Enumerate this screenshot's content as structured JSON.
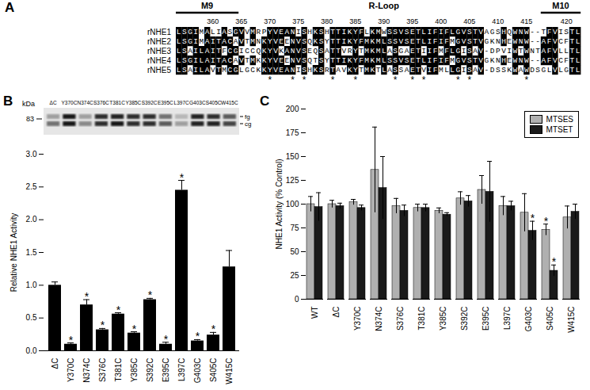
{
  "alignment": {
    "panel": "A",
    "start_residue": 354,
    "numbering": [
      360,
      365,
      370,
      375,
      380,
      385,
      390,
      395,
      400,
      405,
      410,
      415,
      420
    ],
    "segments": [
      {
        "label": "M9",
        "from": 354,
        "to": 364,
        "line": true
      },
      {
        "label": "R-Loop",
        "from": 365,
        "to": 415,
        "line": false
      },
      {
        "label": "M10",
        "from": 416,
        "to": 422,
        "line": true
      }
    ],
    "rows": [
      {
        "name": "rNHE1",
        "sequence": "LSGIMALIASGVVMRPYVEANISHKSHTTIKYFLKMWSSVSETLIFIFLGVSTVAGSHQWNW--TFVISTL"
      },
      {
        "name": "rNHE2",
        "sequence": "LSGIMAITACAVTMNKYVEENVSQKSYTTIKYFMKMLSSVSETLIFIFMGVSTVGKNHEWNW--AFVCFTL"
      },
      {
        "name": "rNHE3",
        "sequence": "LSAILAITFCGICCQKYVKANVSEQSATTVRYTMKMLASGAETIIFMFLGISAV-DPVIWTWNTAFVLLTL"
      },
      {
        "name": "rNHE4",
        "sequence": "LSGILAITACAVTMKKYVEENVSQTSYTTIKYFMKMLSSVSETLIFIFMGVSTVGKNHEWNW--AFVCFTL"
      },
      {
        "name": "rNHE5",
        "sequence": "LSAILAVTMCGLGCKKYVEANISHKSRTAVKYTMKTLASSAETVIFMLLGISAV-DSSKWAWDSGLVLGTL"
      }
    ],
    "marked_residues": [
      370,
      374,
      376,
      381,
      385,
      392,
      395,
      397,
      403,
      405,
      415
    ],
    "mark": "*"
  },
  "chart_data": [
    {
      "panel": "B",
      "type": "bar",
      "categories": [
        "ΔC",
        "Y370C",
        "N374C",
        "S376C",
        "T381C",
        "Y385C",
        "S392C",
        "E395C",
        "L397C",
        "G403C",
        "S405C",
        "W415C"
      ],
      "values": [
        1.0,
        0.1,
        0.7,
        0.32,
        0.56,
        0.27,
        0.78,
        0.1,
        2.45,
        0.15,
        0.24,
        1.28
      ],
      "errors": [
        0.05,
        0.02,
        0.08,
        0.02,
        0.02,
        0.02,
        0.02,
        0.03,
        0.15,
        0.02,
        0.04,
        0.25
      ],
      "marked": [
        false,
        true,
        true,
        true,
        true,
        true,
        true,
        true,
        true,
        true,
        true,
        false
      ],
      "annotation_text": "*",
      "color": "#000000",
      "ylabel": "Relative NHE1 Activity",
      "ylim": [
        0,
        3
      ],
      "yticks": [
        {
          "value": 0,
          "label": "0.0"
        },
        {
          "value": 0.5,
          "label": "0.5"
        },
        {
          "value": 1,
          "label": "1.0"
        },
        {
          "value": 1.5,
          "label": "1.5"
        },
        {
          "value": 2,
          "label": "2.0"
        },
        {
          "value": 2.5,
          "label": "2.5"
        },
        {
          "value": 3,
          "label": "3.0"
        }
      ],
      "blot": {
        "unit_label": "kDa",
        "marker": 83,
        "band_labels": [
          "fg",
          "cg"
        ],
        "intensity": {
          "fg": [
            0.3,
            0.9,
            0.3,
            0.8,
            0.85,
            0.8,
            0.8,
            0.5,
            0.2,
            0.85,
            0.8,
            0.6
          ],
          "cg": [
            0.5,
            0.9,
            0.4,
            0.8,
            0.9,
            0.8,
            0.8,
            0.6,
            0.3,
            0.85,
            0.85,
            0.7
          ]
        }
      }
    },
    {
      "panel": "C",
      "type": "bar",
      "categories": [
        "WT",
        "ΔC",
        "Y370C",
        "N374C",
        "S376C",
        "T381C",
        "Y385C",
        "S392C",
        "E395C",
        "L397C",
        "G403C",
        "S405C",
        "W415C"
      ],
      "series": [
        {
          "name": "MTSES",
          "color": "#b0b0b0",
          "values": [
            100,
            100,
            102,
            136,
            98,
            96,
            93,
            106,
            115,
            98,
            91,
            73,
            86
          ],
          "errors": [
            8,
            4,
            3,
            45,
            8,
            4,
            3,
            7,
            15,
            10,
            20,
            6,
            12
          ],
          "marked": [
            false,
            false,
            false,
            false,
            false,
            false,
            false,
            false,
            false,
            false,
            false,
            true,
            false
          ]
        },
        {
          "name": "MTSET",
          "color": "#1a1a1a",
          "values": [
            97,
            98,
            96,
            117,
            93,
            96,
            89,
            103,
            113,
            98,
            72,
            30,
            92
          ],
          "errors": [
            15,
            3,
            3,
            33,
            6,
            4,
            2,
            6,
            32,
            5,
            10,
            6,
            8
          ],
          "marked": [
            false,
            false,
            false,
            false,
            false,
            false,
            false,
            false,
            false,
            false,
            true,
            true,
            false
          ]
        }
      ],
      "annotation_text": "*",
      "ylabel": "NHE1 Activity (% Control)",
      "ylim": [
        0,
        200
      ],
      "yticks": [
        0,
        25,
        50,
        75,
        100,
        125,
        150,
        175,
        200
      ],
      "legend": "top-right"
    }
  ]
}
